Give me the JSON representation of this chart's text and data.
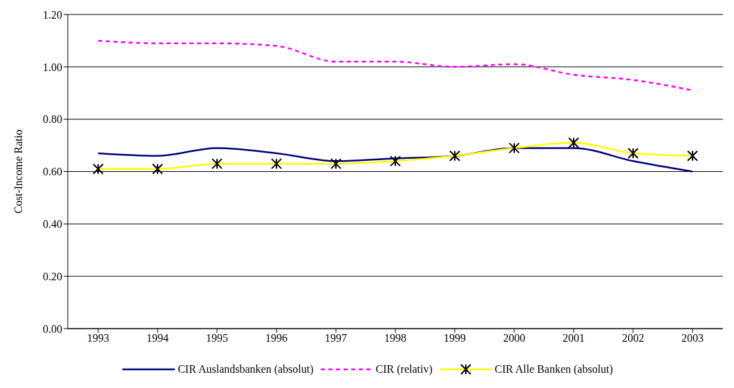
{
  "chart_data": {
    "type": "line",
    "ylabel": "Cost-Income Ratio",
    "categories": [
      "1993",
      "1994",
      "1995",
      "1996",
      "1997",
      "1998",
      "1999",
      "2000",
      "2001",
      "2002",
      "2003"
    ],
    "series": [
      {
        "name": "CIR Auslandsbanken (absolut)",
        "color": "#000080",
        "line_style": "solid",
        "marker": "none",
        "values": [
          0.67,
          0.66,
          0.69,
          0.67,
          0.64,
          0.65,
          0.66,
          0.69,
          0.69,
          0.64,
          0.6
        ]
      },
      {
        "name": "CIR (relativ)",
        "color": "#ff00ff",
        "line_style": "dashed",
        "marker": "none",
        "values": [
          1.1,
          1.09,
          1.09,
          1.08,
          1.02,
          1.02,
          1.0,
          1.01,
          0.97,
          0.95,
          0.91
        ]
      },
      {
        "name": "CIR Alle Banken (absolut)",
        "color": "#ffff00",
        "line_style": "solid",
        "marker": "cross",
        "values": [
          0.61,
          0.61,
          0.63,
          0.63,
          0.63,
          0.64,
          0.66,
          0.69,
          0.71,
          0.67,
          0.66
        ]
      }
    ],
    "ylim": [
      0,
      1.2
    ],
    "yticks": [
      {
        "value": 0,
        "label": "0.00"
      },
      {
        "value": 0.2,
        "label": "0.20"
      },
      {
        "value": 0.4,
        "label": "0.40"
      },
      {
        "value": 0.6,
        "label": "0.60"
      },
      {
        "value": 0.8,
        "label": "0.80"
      },
      {
        "value": 1,
        "label": "1.00"
      },
      {
        "value": 1.2,
        "label": "1.20"
      }
    ],
    "grid": "y",
    "legend": "bottom"
  }
}
